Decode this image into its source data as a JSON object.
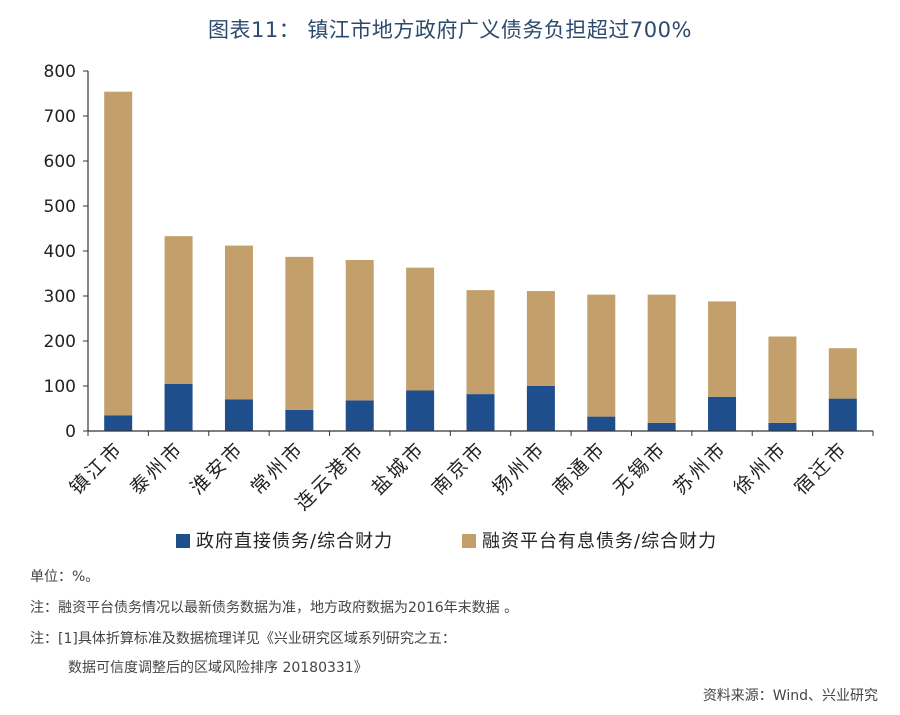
{
  "chart_data": {
    "type": "bar",
    "stacked": true,
    "title": "图表11： 镇江市地方政府广义债务负担超过700%",
    "categories": [
      "镇江市",
      "泰州市",
      "淮安市",
      "常州市",
      "连云港市",
      "盐城市",
      "南京市",
      "扬州市",
      "南通市",
      "无锡市",
      "苏州市",
      "徐州市",
      "宿迁市"
    ],
    "series": [
      {
        "name": "政府直接债务/综合财力",
        "color": "#1f4e8c",
        "values": [
          35,
          105,
          70,
          47,
          68,
          90,
          82,
          100,
          32,
          18,
          76,
          18,
          72
        ]
      },
      {
        "name": "融资平台有息债务/综合财力",
        "color": "#c3a06b",
        "values": [
          719,
          328,
          342,
          340,
          312,
          273,
          231,
          211,
          271,
          285,
          212,
          192,
          112
        ]
      }
    ],
    "ylim": [
      0,
      800
    ],
    "yticks": [
      0,
      100,
      200,
      300,
      400,
      500,
      600,
      700,
      800
    ],
    "legend_position": "bottom"
  },
  "notes": {
    "unit": "单位：%。",
    "note1": "注：融资平台债务情况以最新债务数据为准，地方政府数据为2016年末数据 。",
    "note2a": "注：[1]具体折算标准及数据梳理详见《兴业研究区域系列研究之五：",
    "note2b": "数据可信度调整后的区域风险排序 20180331》",
    "source": "资料来源：Wind、兴业研究"
  }
}
